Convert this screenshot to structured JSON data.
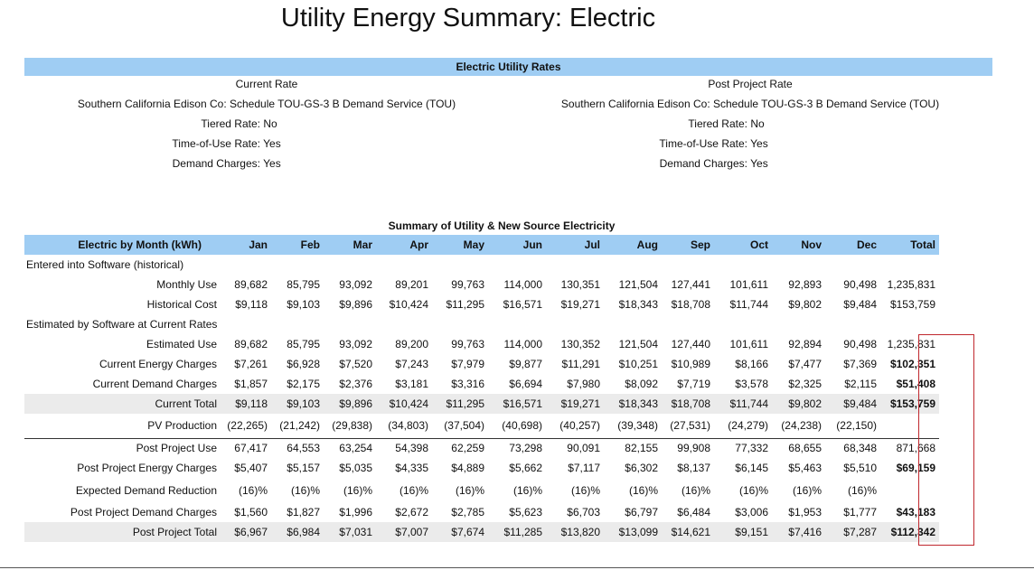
{
  "title": "Utility Energy Summary: Electric",
  "rates_header": "Electric Utility Rates",
  "current": {
    "heading": "Current Rate",
    "provider": "Southern California Edison Co: Schedule TOU-GS-3 B Demand Service (TOU)",
    "tiered_label": "Tiered Rate:",
    "tiered_value": "No",
    "tou_label": "Time-of-Use Rate:",
    "tou_value": "Yes",
    "demand_label": "Demand Charges:",
    "demand_value": "Yes"
  },
  "post": {
    "heading": "Post Project Rate",
    "provider": "Southern California Edison Co: Schedule TOU-GS-3 B Demand Service (TOU)",
    "tiered_label": "Tiered Rate:",
    "tiered_value": "No",
    "tou_label": "Time-of-Use Rate:",
    "tou_value": "Yes",
    "demand_label": "Demand Charges:",
    "demand_value": "Yes"
  },
  "summary_title": "Summary of Utility & New Source Electricity",
  "table": {
    "header_label": "Electric by Month (kWh)",
    "columns": [
      "Jan",
      "Feb",
      "Mar",
      "Apr",
      "May",
      "Jun",
      "Jul",
      "Aug",
      "Sep",
      "Oct",
      "Nov",
      "Dec",
      "Total"
    ],
    "rows": [
      {
        "type": "section",
        "label": "Entered into Software (historical)"
      },
      {
        "label": "Monthly Use",
        "values": [
          "89,682",
          "85,795",
          "93,092",
          "89,201",
          "99,763",
          "114,000",
          "130,351",
          "121,504",
          "127,441",
          "101,611",
          "92,893",
          "90,498",
          "1,235,831"
        ]
      },
      {
        "label": "Historical Cost",
        "values": [
          "$9,118",
          "$9,103",
          "$9,896",
          "$10,424",
          "$11,295",
          "$16,571",
          "$19,271",
          "$18,343",
          "$18,708",
          "$11,744",
          "$9,802",
          "$9,484",
          "$153,759"
        ]
      },
      {
        "type": "section",
        "label": "Estimated by Software at Current Rates"
      },
      {
        "label": "Estimated Use",
        "values": [
          "89,682",
          "85,795",
          "93,092",
          "89,200",
          "99,763",
          "114,000",
          "130,352",
          "121,504",
          "127,440",
          "101,611",
          "92,894",
          "90,498",
          "1,235,831"
        ]
      },
      {
        "label": "Current Energy Charges",
        "values": [
          "$7,261",
          "$6,928",
          "$7,520",
          "$7,243",
          "$7,979",
          "$9,877",
          "$11,291",
          "$10,251",
          "$10,989",
          "$8,166",
          "$7,477",
          "$7,369",
          "$102,351"
        ],
        "bold_total": true
      },
      {
        "label": "Current Demand Charges",
        "values": [
          "$1,857",
          "$2,175",
          "$2,376",
          "$3,181",
          "$3,316",
          "$6,694",
          "$7,980",
          "$8,092",
          "$7,719",
          "$3,578",
          "$2,325",
          "$2,115",
          "$51,408"
        ],
        "bold_total": true
      },
      {
        "label": "Current Total",
        "values": [
          "$9,118",
          "$9,103",
          "$9,896",
          "$10,424",
          "$11,295",
          "$16,571",
          "$19,271",
          "$18,343",
          "$18,708",
          "$11,744",
          "$9,802",
          "$9,484",
          "$153,759"
        ],
        "bold_total": true,
        "gray": true
      },
      {
        "label": "PV Production",
        "values": [
          "(22,265)",
          "(21,242)",
          "(29,838)",
          "(34,803)",
          "(37,504)",
          "(40,698)",
          "(40,257)",
          "(39,348)",
          "(27,531)",
          "(24,279)",
          "(24,238)",
          "(22,150)",
          ""
        ],
        "tall": true
      },
      {
        "label": "Post Project Use",
        "values": [
          "67,417",
          "64,553",
          "63,254",
          "54,398",
          "62,259",
          "73,298",
          "90,091",
          "82,155",
          "99,908",
          "77,332",
          "68,655",
          "68,348",
          "871,668"
        ],
        "topline": true
      },
      {
        "label": "Post Project Energy Charges",
        "values": [
          "$5,407",
          "$5,157",
          "$5,035",
          "$4,335",
          "$4,889",
          "$5,662",
          "$7,117",
          "$6,302",
          "$8,137",
          "$6,145",
          "$5,463",
          "$5,510",
          "$69,159"
        ],
        "bold_total": true
      },
      {
        "label": "Expected Demand Reduction",
        "values": [
          "(16)%",
          "(16)%",
          "(16)%",
          "(16)%",
          "(16)%",
          "(16)%",
          "(16)%",
          "(16)%",
          "(16)%",
          "(16)%",
          "(16)%",
          "(16)%",
          ""
        ],
        "tall": true
      },
      {
        "label": "Post Project Demand Charges",
        "values": [
          "$1,560",
          "$1,827",
          "$1,996",
          "$2,672",
          "$2,785",
          "$5,623",
          "$6,703",
          "$6,797",
          "$6,484",
          "$3,006",
          "$1,953",
          "$1,777",
          "$43,183"
        ],
        "bold_total": true
      },
      {
        "label": "Post Project Total",
        "values": [
          "$6,967",
          "$6,984",
          "$7,031",
          "$7,007",
          "$7,674",
          "$11,285",
          "$13,820",
          "$13,099",
          "$14,621",
          "$9,151",
          "$7,416",
          "$7,287",
          "$112,342"
        ],
        "bold_total": true,
        "gray": true
      }
    ]
  }
}
